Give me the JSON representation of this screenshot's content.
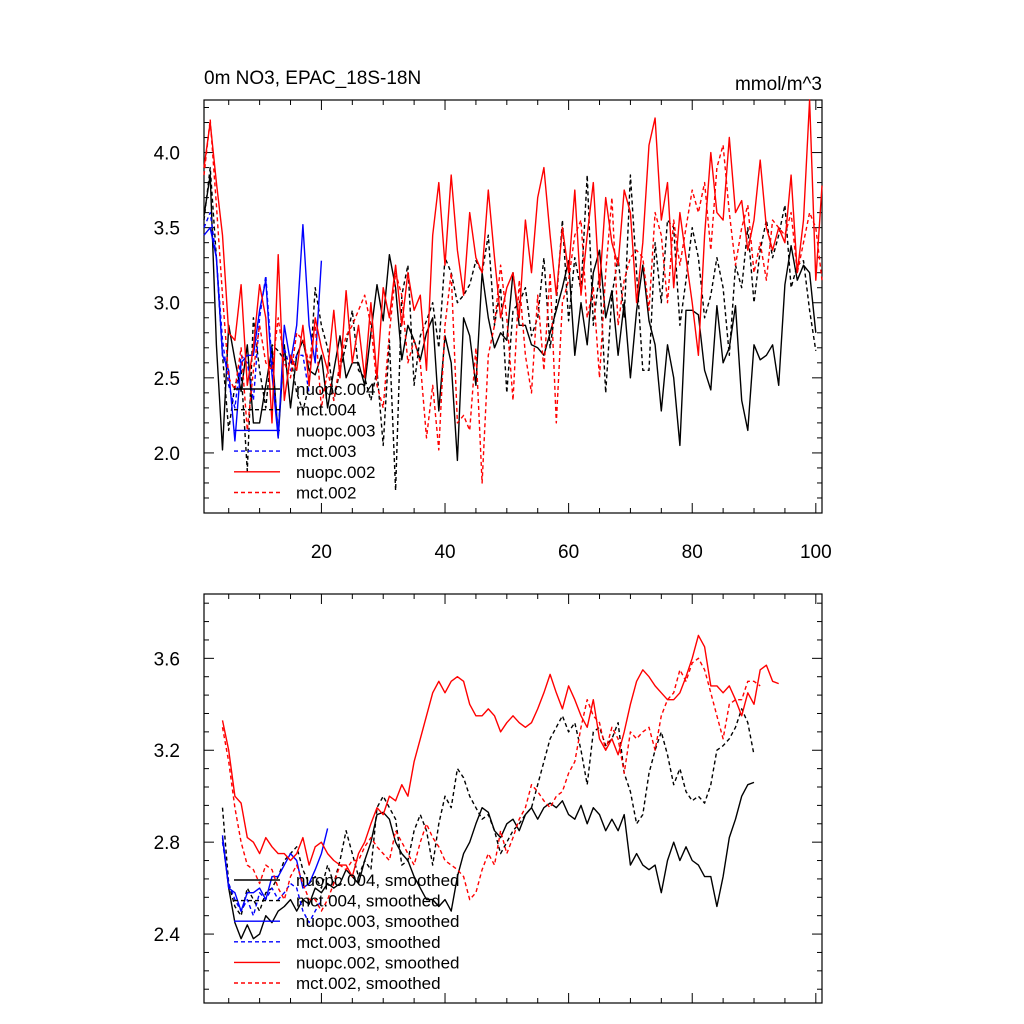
{
  "chart_data": [
    {
      "type": "line",
      "title": "0m NO3, EPAC_18S-18N",
      "units": "mmol/m^3",
      "xlim": [
        1,
        101
      ],
      "ylim": [
        1.6,
        4.35
      ],
      "x_ticks": [
        20,
        40,
        60,
        80,
        100
      ],
      "x_tick_labels": [
        "20",
        "40",
        "60",
        "80",
        "100"
      ],
      "y_ticks": [
        2.0,
        2.5,
        3.0,
        3.5,
        4.0
      ],
      "y_tick_labels": [
        "2.0",
        "2.5",
        "3.0",
        "3.5",
        "4.0"
      ],
      "legend_position": "bottom-left",
      "series": [
        {
          "name": "nuopc.004",
          "color": "#000000",
          "dash": "solid",
          "x_start": 1,
          "values": [
            3.58,
            3.85,
            2.72,
            2.02,
            2.85,
            2.62,
            2.41,
            2.72,
            2.2,
            2.2,
            2.45,
            2.7,
            2.1,
            2.72,
            2.3,
            2.65,
            2.75,
            2.55,
            2.52,
            2.65,
            2.3,
            2.55,
            2.78,
            2.5,
            2.6,
            2.6,
            2.45,
            2.8,
            3.12,
            2.88,
            3.32,
            3.1,
            2.62,
            2.85,
            2.75,
            2.62,
            2.8,
            2.9,
            2.28,
            2.78,
            2.6,
            1.95,
            2.9,
            2.78,
            2.45,
            3.2,
            2.9,
            2.7,
            2.8,
            2.75,
            3.2,
            2.85,
            2.85,
            2.72,
            2.7,
            2.65,
            2.8,
            2.95,
            3.1,
            3.28,
            2.65,
            3.0,
            2.72,
            3.2,
            3.35,
            2.9,
            3.08,
            2.65,
            3.0,
            2.5,
            2.95,
            3.25,
            2.88,
            2.72,
            2.28,
            2.72,
            2.5,
            2.05,
            2.95,
            2.95,
            2.92,
            2.55,
            2.42,
            2.98,
            2.6,
            2.7,
            2.98,
            2.35,
            2.15,
            2.72,
            2.62,
            2.65,
            2.72,
            2.45,
            3.12,
            3.38,
            3.15,
            3.25,
            3.2,
            2.8
          ]
        },
        {
          "name": "mct.004",
          "color": "#000000",
          "dash": "dashed",
          "x_start": 1,
          "values": [
            3.55,
            3.9,
            3.3,
            2.65,
            2.15,
            2.45,
            2.55,
            1.88,
            2.9,
            2.55,
            2.3,
            2.72,
            2.68,
            2.62,
            2.65,
            2.4,
            2.28,
            2.45,
            3.1,
            2.85,
            2.7,
            2.35,
            2.55,
            2.72,
            2.95,
            2.55,
            2.5,
            2.35,
            2.55,
            2.05,
            2.75,
            1.75,
            3.05,
            3.25,
            2.45,
            2.78,
            2.88,
            3.0,
            2.7,
            3.3,
            3.2,
            3.0,
            3.05,
            3.12,
            3.28,
            3.2,
            3.45,
            2.85,
            3.1,
            2.4,
            2.95,
            3.0,
            3.1,
            2.78,
            2.9,
            3.3,
            2.7,
            3.0,
            3.55,
            2.88,
            3.3,
            3.08,
            3.85,
            2.85,
            3.2,
            2.4,
            3.05,
            3.3,
            2.9,
            3.85,
            3.2,
            2.55,
            2.55,
            3.4,
            3.0,
            3.55,
            3.5,
            2.85,
            3.15,
            3.5,
            3.3,
            2.9,
            3.05,
            3.3,
            3.1,
            2.65,
            3.25,
            3.1,
            3.5,
            3.0,
            3.35,
            3.55,
            3.3,
            3.45,
            3.65,
            3.1,
            3.25,
            3.28,
            2.95,
            2.68
          ]
        },
        {
          "name": "nuopc.003",
          "color": "#0000ff",
          "dash": "solid",
          "x_start": 1,
          "values": [
            3.45,
            3.5,
            3.3,
            2.65,
            2.55,
            2.08,
            2.6,
            2.65,
            2.65,
            2.95,
            3.15,
            2.52,
            2.1,
            2.85,
            2.6,
            2.85,
            3.52,
            2.85,
            2.6,
            3.28
          ]
        },
        {
          "name": "mct.003",
          "color": "#0000ff",
          "dash": "dashed",
          "x_start": 1,
          "values": [
            3.5,
            3.6,
            3.3,
            2.75,
            2.45,
            2.3,
            2.65,
            2.6,
            2.35,
            2.9,
            3.18,
            2.6,
            2.15,
            2.7,
            2.55,
            2.65,
            2.65,
            2.4
          ]
        },
        {
          "name": "nuopc.002",
          "color": "#ff0000",
          "dash": "solid",
          "x_start": 1,
          "values": [
            3.9,
            4.2,
            3.8,
            3.45,
            2.8,
            2.75,
            3.12,
            2.45,
            2.7,
            3.12,
            2.9,
            2.2,
            3.32,
            2.35,
            2.65,
            2.55,
            2.85,
            2.45,
            2.9,
            2.7,
            2.55,
            2.95,
            2.5,
            3.08,
            2.6,
            2.85,
            2.5,
            3.0,
            2.5,
            3.1,
            2.9,
            3.25,
            2.85,
            3.2,
            2.95,
            3.05,
            2.55,
            3.45,
            3.8,
            3.25,
            3.85,
            3.35,
            3.05,
            3.6,
            3.3,
            3.2,
            3.75,
            3.3,
            2.9,
            3.1,
            3.2,
            2.9,
            3.55,
            3.2,
            3.7,
            3.9,
            3.45,
            3.05,
            3.5,
            3.2,
            3.75,
            3.05,
            3.45,
            3.8,
            3.1,
            3.7,
            3.4,
            3.25,
            3.75,
            3.6,
            3.0,
            3.4,
            4.05,
            4.23,
            3.55,
            3.8,
            3.1,
            3.6,
            3.3,
            3.0,
            2.65,
            3.45,
            4.0,
            3.6,
            3.55,
            4.1,
            3.6,
            3.68,
            3.35,
            3.55,
            3.95,
            3.5,
            3.35,
            3.5,
            3.4,
            3.85,
            3.2,
            3.55,
            4.35,
            3.15,
            3.78
          ]
        },
        {
          "name": "mct.002",
          "color": "#ff0000",
          "dash": "dashed",
          "x_start": 1,
          "values": [
            3.85,
            4.22,
            3.65,
            3.05,
            2.5,
            2.42,
            2.7,
            2.15,
            2.55,
            2.85,
            2.6,
            2.55,
            2.9,
            2.6,
            2.5,
            2.8,
            2.75,
            2.6,
            2.85,
            2.3,
            2.55,
            2.35,
            2.6,
            2.78,
            2.85,
            2.95,
            3.05,
            2.85,
            2.45,
            2.3,
            2.8,
            3.2,
            3.05,
            2.6,
            2.75,
            2.6,
            2.1,
            2.45,
            2.02,
            2.85,
            3.2,
            2.2,
            2.25,
            2.15,
            2.7,
            1.8,
            2.65,
            2.85,
            3.25,
            2.9,
            2.35,
            3.15,
            2.65,
            2.4,
            3.05,
            2.55,
            3.2,
            2.2,
            3.0,
            3.15,
            3.45,
            3.55,
            2.9,
            3.1,
            2.5,
            3.2,
            3.7,
            2.85,
            3.15,
            3.3,
            3.35,
            3.3,
            2.95,
            3.6,
            3.45,
            3.0,
            3.55,
            3.25,
            3.5,
            3.75,
            3.6,
            3.8,
            3.35,
            3.9,
            4.05,
            3.6,
            3.25,
            3.5,
            3.65,
            3.2,
            3.4,
            3.15,
            3.55,
            3.5,
            3.45,
            3.6,
            3.2,
            3.4,
            3.6,
            3.5,
            3.15
          ]
        }
      ]
    },
    {
      "type": "line",
      "title": "",
      "xlim": [
        1,
        101
      ],
      "ylim": [
        2.1,
        3.88
      ],
      "x_ticks": [
        20,
        40,
        60,
        80,
        100
      ],
      "y_ticks": [
        2.4,
        2.8,
        3.2,
        3.6
      ],
      "y_tick_labels": [
        "2.4",
        "2.8",
        "3.2",
        "3.6"
      ],
      "legend_position": "bottom-left",
      "series": [
        {
          "name": "nuopc.004, smoothed",
          "color": "#000000",
          "dash": "solid",
          "x_start": 4,
          "values": [
            2.82,
            2.6,
            2.45,
            2.38,
            2.44,
            2.38,
            2.4,
            2.48,
            2.45,
            2.5,
            2.52,
            2.55,
            2.5,
            2.55,
            2.53,
            2.6,
            2.58,
            2.62,
            2.6,
            2.62,
            2.68,
            2.65,
            2.62,
            2.72,
            2.8,
            2.92,
            2.93,
            2.9,
            2.8,
            2.75,
            2.72,
            2.65,
            2.6,
            2.55,
            2.55,
            2.52,
            2.55,
            2.5,
            2.65,
            2.75,
            2.8,
            2.88,
            2.95,
            2.93,
            2.85,
            2.82,
            2.88,
            2.9,
            2.85,
            2.92,
            2.95,
            2.9,
            2.95,
            2.97,
            2.95,
            2.98,
            2.92,
            2.9,
            2.96,
            2.88,
            2.95,
            2.92,
            2.85,
            2.9,
            2.85,
            2.92,
            2.7,
            2.75,
            2.7,
            2.68,
            2.7,
            2.58,
            2.72,
            2.8,
            2.72,
            2.78,
            2.72,
            2.7,
            2.65,
            2.65,
            2.52,
            2.65,
            2.82,
            2.9,
            3.0,
            3.05,
            3.06
          ]
        },
        {
          "name": "mct.004, smoothed",
          "color": "#000000",
          "dash": "dashed",
          "x_start": 4,
          "values": [
            2.95,
            2.62,
            2.52,
            2.48,
            2.6,
            2.55,
            2.5,
            2.58,
            2.6,
            2.65,
            2.72,
            2.75,
            2.78,
            2.68,
            2.62,
            2.65,
            2.6,
            2.7,
            2.62,
            2.72,
            2.85,
            2.75,
            2.65,
            2.72,
            2.68,
            2.95,
            3.0,
            2.95,
            2.9,
            2.7,
            2.72,
            2.85,
            2.92,
            2.85,
            2.7,
            2.88,
            3.0,
            2.95,
            3.12,
            3.08,
            3.0,
            2.95,
            2.9,
            2.92,
            2.85,
            2.75,
            2.8,
            2.85,
            2.88,
            2.92,
            2.95,
            3.05,
            3.15,
            3.25,
            3.3,
            3.35,
            3.28,
            3.32,
            3.2,
            3.05,
            3.28,
            3.3,
            3.22,
            3.25,
            3.32,
            3.1,
            3.02,
            2.88,
            2.92,
            3.1,
            3.2,
            3.28,
            3.18,
            3.05,
            3.12,
            3.02,
            2.98,
            3.0,
            2.97,
            3.05,
            3.2,
            3.22,
            3.25,
            3.3,
            3.38,
            3.32,
            3.18
          ]
        },
        {
          "name": "nuopc.003, smoothed",
          "color": "#0000ff",
          "dash": "solid",
          "x_start": 4,
          "values": [
            2.83,
            2.6,
            2.58,
            2.5,
            2.58,
            2.58,
            2.6,
            2.55,
            2.65,
            2.65,
            2.7,
            2.75,
            2.72,
            2.6,
            2.62,
            2.68,
            2.75,
            2.86
          ]
        },
        {
          "name": "mct.003, smoothed",
          "color": "#0000ff",
          "dash": "dashed",
          "x_start": 4,
          "values": [
            2.8,
            2.62,
            2.55,
            2.5,
            2.55,
            2.48,
            2.58,
            2.55,
            2.6,
            2.55,
            2.58,
            2.62,
            2.6,
            2.5,
            2.45,
            2.5,
            2.55
          ]
        },
        {
          "name": "nuopc.002, smoothed",
          "color": "#ff0000",
          "dash": "solid",
          "x_start": 4,
          "values": [
            3.33,
            3.2,
            3.0,
            2.97,
            2.82,
            2.8,
            2.75,
            2.82,
            2.78,
            2.75,
            2.75,
            2.72,
            2.75,
            2.82,
            2.7,
            2.78,
            2.8,
            2.75,
            2.72,
            2.7,
            2.7,
            2.65,
            2.75,
            2.8,
            2.88,
            2.95,
            2.92,
            3.0,
            2.98,
            3.05,
            3.0,
            3.15,
            3.25,
            3.35,
            3.45,
            3.5,
            3.45,
            3.5,
            3.52,
            3.5,
            3.4,
            3.35,
            3.35,
            3.38,
            3.35,
            3.28,
            3.32,
            3.35,
            3.32,
            3.3,
            3.32,
            3.38,
            3.45,
            3.53,
            3.45,
            3.38,
            3.48,
            3.42,
            3.35,
            3.3,
            3.42,
            3.25,
            3.2,
            3.25,
            3.18,
            3.28,
            3.4,
            3.5,
            3.55,
            3.52,
            3.48,
            3.45,
            3.42,
            3.42,
            3.45,
            3.52,
            3.6,
            3.7,
            3.65,
            3.48,
            3.48,
            3.45,
            3.48,
            3.42,
            3.35,
            3.45,
            3.4,
            3.55,
            3.57,
            3.5,
            3.49
          ]
        },
        {
          "name": "mct.002, smoothed",
          "color": "#ff0000",
          "dash": "dashed",
          "x_start": 4,
          "values": [
            3.3,
            3.15,
            2.95,
            2.8,
            2.7,
            2.68,
            2.62,
            2.7,
            2.68,
            2.6,
            2.55,
            2.65,
            2.7,
            2.62,
            2.55,
            2.55,
            2.5,
            2.55,
            2.62,
            2.7,
            2.68,
            2.72,
            2.72,
            2.78,
            2.82,
            2.78,
            2.75,
            2.72,
            2.85,
            2.8,
            2.75,
            2.7,
            2.8,
            2.88,
            2.82,
            2.78,
            2.72,
            2.7,
            2.68,
            2.65,
            2.55,
            2.58,
            2.68,
            2.75,
            2.7,
            2.85,
            2.75,
            2.82,
            2.9,
            2.95,
            3.05,
            3.02,
            2.98,
            2.95,
            3.0,
            3.02,
            3.1,
            3.15,
            3.3,
            3.42,
            3.35,
            3.32,
            3.2,
            3.3,
            3.25,
            3.1,
            3.28,
            3.25,
            3.28,
            3.3,
            3.2,
            3.35,
            3.42,
            3.45,
            3.55,
            3.5,
            3.58,
            3.6,
            3.55,
            3.45,
            3.35,
            3.25,
            3.4,
            3.42,
            3.42,
            3.5,
            3.5,
            3.48
          ]
        }
      ]
    }
  ]
}
